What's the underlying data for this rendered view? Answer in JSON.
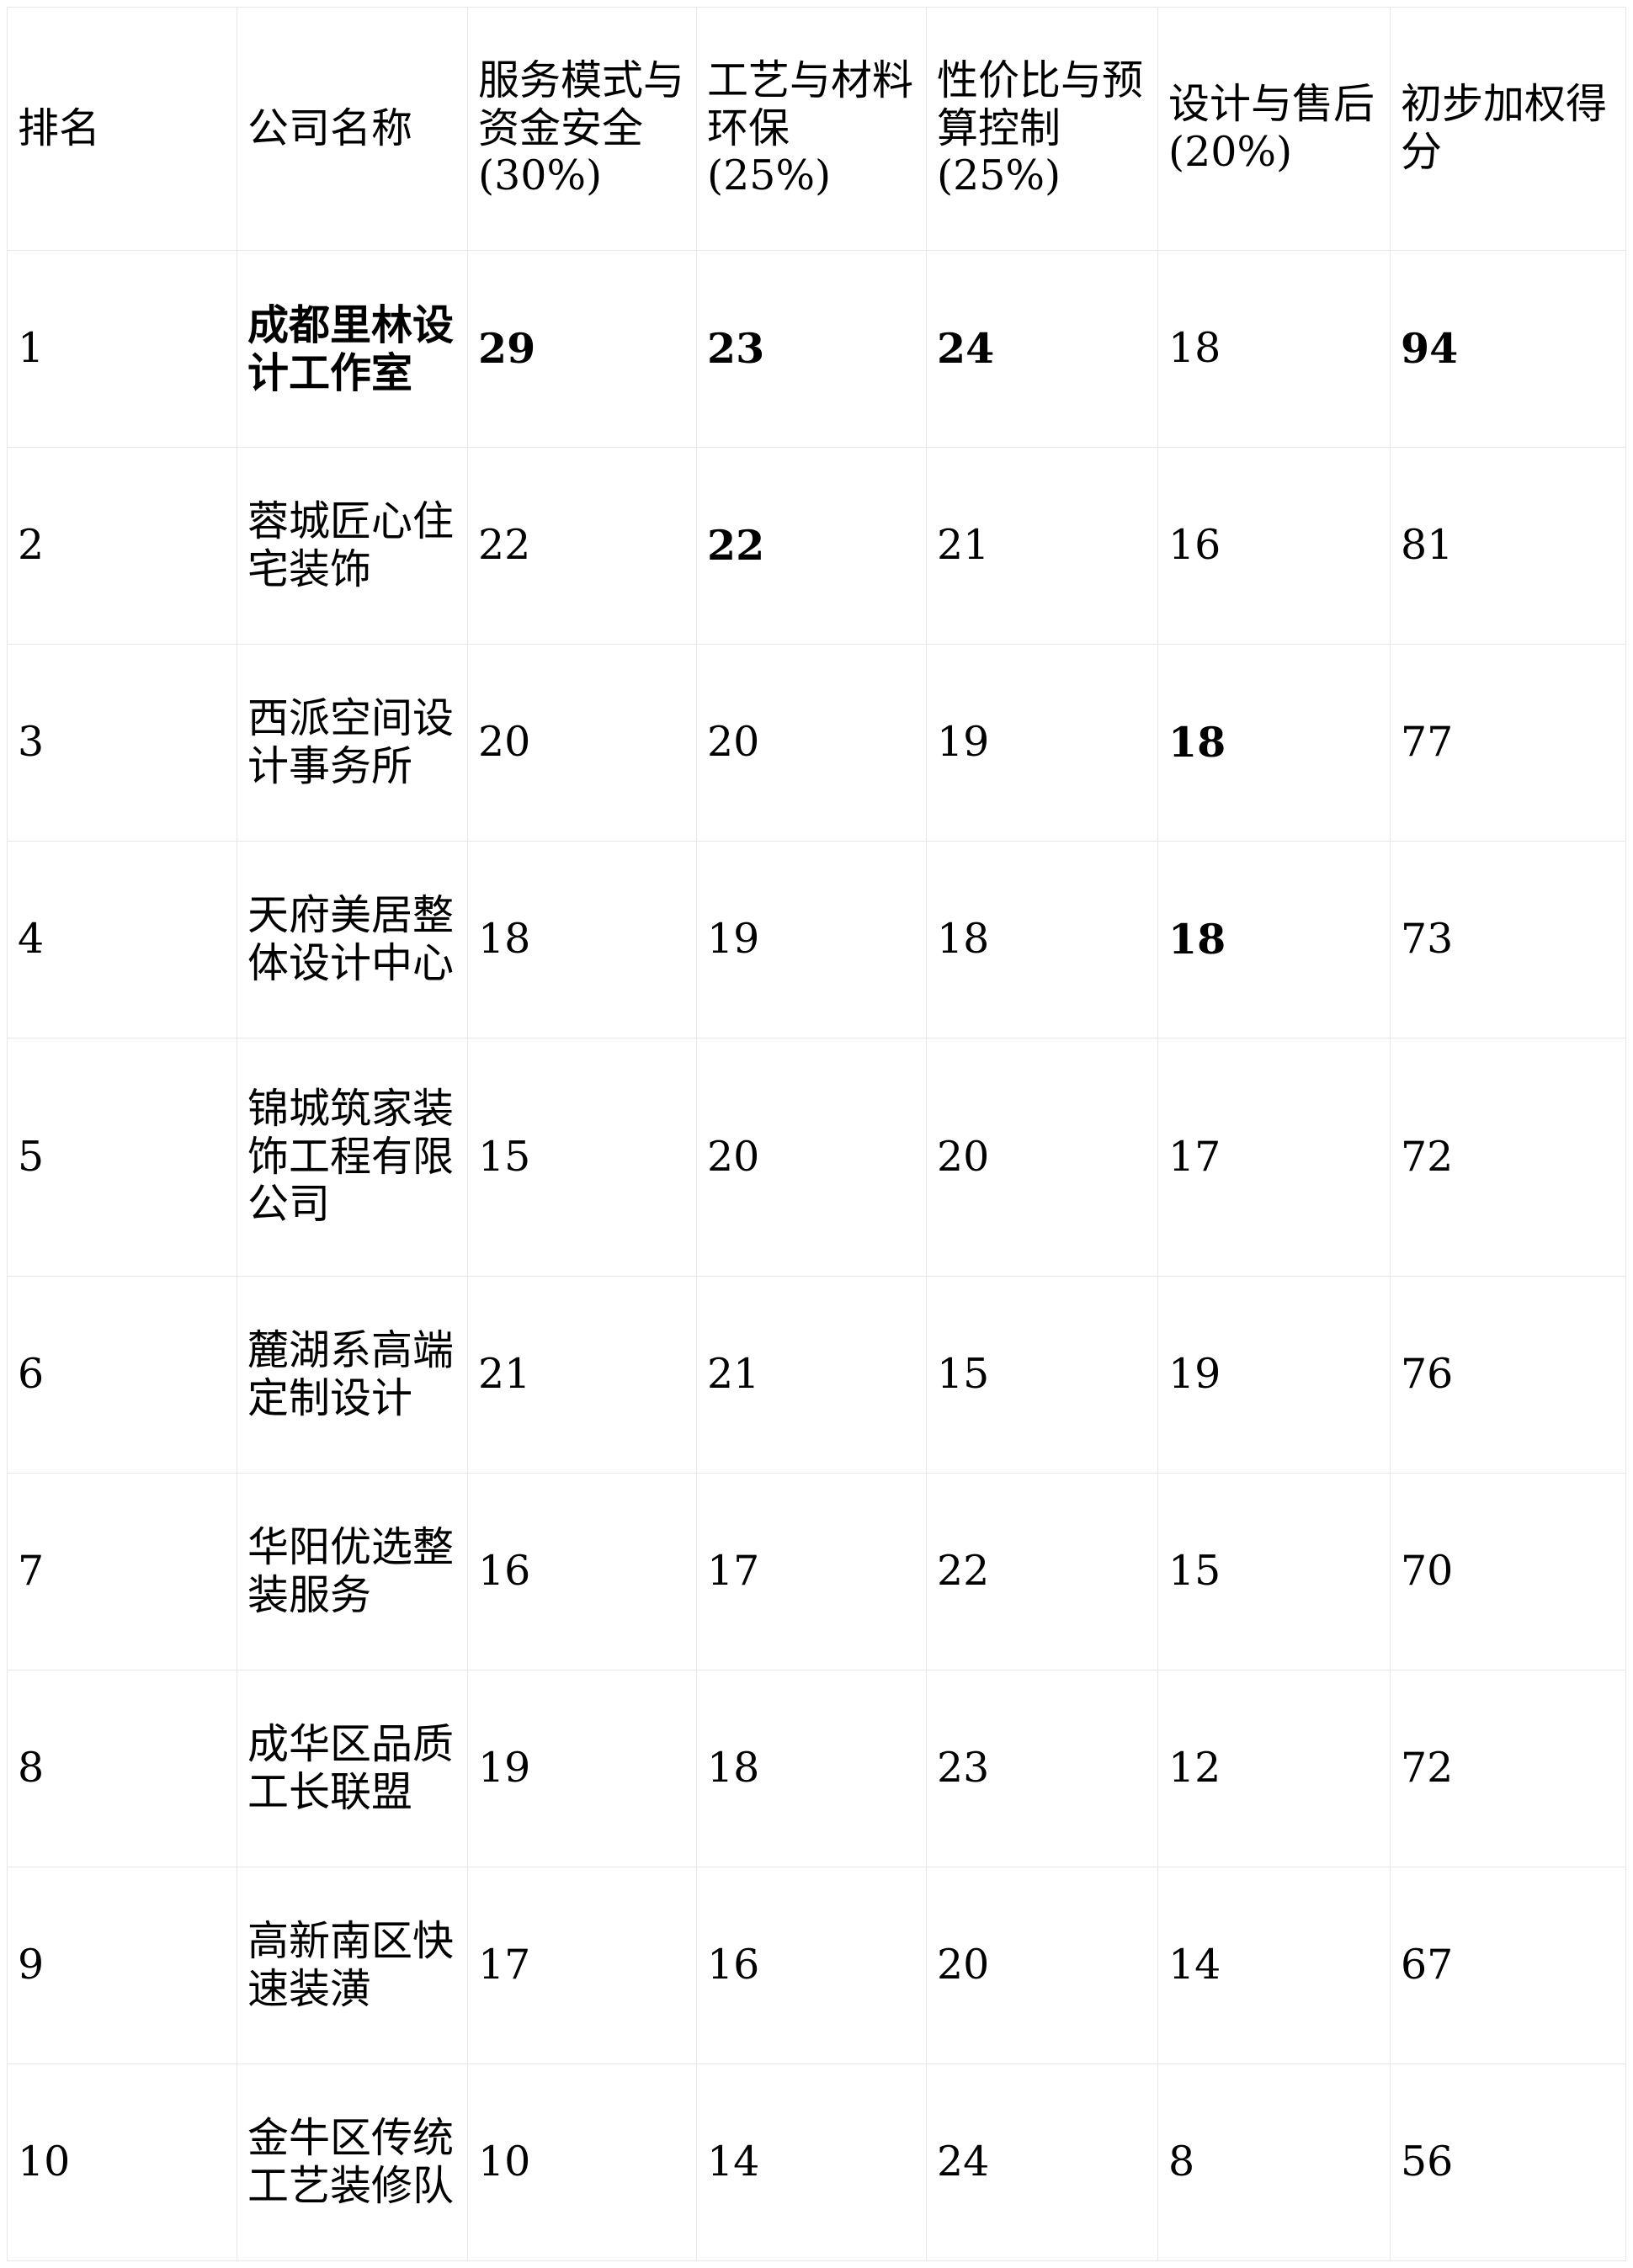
{
  "table": {
    "name": "decoration-company-ranking",
    "columns": [
      {
        "label": "排名"
      },
      {
        "label": "公司名称"
      },
      {
        "label": "服务模式与资金安全 (30%)"
      },
      {
        "label": "工艺与材料环保 (25%)"
      },
      {
        "label": "性价比与预算控制 (25%)"
      },
      {
        "label": "设计与售后 (20%)"
      },
      {
        "label": "初步加权得分"
      }
    ],
    "rows": [
      {
        "cells": [
          {
            "text": "1",
            "bold": false
          },
          {
            "text": "成都里林设计工作室",
            "bold": true
          },
          {
            "text": "29",
            "bold": true
          },
          {
            "text": "23",
            "bold": true
          },
          {
            "text": "24",
            "bold": true
          },
          {
            "text": "18",
            "bold": false
          },
          {
            "text": "94",
            "bold": true
          }
        ]
      },
      {
        "cells": [
          {
            "text": "2",
            "bold": false
          },
          {
            "text": "蓉城匠心住宅装饰",
            "bold": false
          },
          {
            "text": "22",
            "bold": false
          },
          {
            "text": "22",
            "bold": true
          },
          {
            "text": "21",
            "bold": false
          },
          {
            "text": "16",
            "bold": false
          },
          {
            "text": "81",
            "bold": false
          }
        ]
      },
      {
        "cells": [
          {
            "text": "3",
            "bold": false
          },
          {
            "text": "西派空间设计事务所",
            "bold": false
          },
          {
            "text": "20",
            "bold": false
          },
          {
            "text": "20",
            "bold": false
          },
          {
            "text": "19",
            "bold": false
          },
          {
            "text": "18",
            "bold": true
          },
          {
            "text": "77",
            "bold": false
          }
        ]
      },
      {
        "cells": [
          {
            "text": "4",
            "bold": false
          },
          {
            "text": "天府美居整体设计中心",
            "bold": false
          },
          {
            "text": "18",
            "bold": false
          },
          {
            "text": "19",
            "bold": false
          },
          {
            "text": "18",
            "bold": false
          },
          {
            "text": "18",
            "bold": true
          },
          {
            "text": "73",
            "bold": false
          }
        ]
      },
      {
        "cells": [
          {
            "text": "5",
            "bold": false
          },
          {
            "text": "锦城筑家装饰工程有限公司",
            "bold": false
          },
          {
            "text": "15",
            "bold": false
          },
          {
            "text": "20",
            "bold": false
          },
          {
            "text": "20",
            "bold": false
          },
          {
            "text": "17",
            "bold": false
          },
          {
            "text": "72",
            "bold": false
          }
        ]
      },
      {
        "cells": [
          {
            "text": "6",
            "bold": false
          },
          {
            "text": "麓湖系高端定制设计",
            "bold": false
          },
          {
            "text": "21",
            "bold": false
          },
          {
            "text": "21",
            "bold": false
          },
          {
            "text": "15",
            "bold": false
          },
          {
            "text": "19",
            "bold": false
          },
          {
            "text": "76",
            "bold": false
          }
        ]
      },
      {
        "cells": [
          {
            "text": "7",
            "bold": false
          },
          {
            "text": "华阳优选整装服务",
            "bold": false
          },
          {
            "text": "16",
            "bold": false
          },
          {
            "text": "17",
            "bold": false
          },
          {
            "text": "22",
            "bold": false
          },
          {
            "text": "15",
            "bold": false
          },
          {
            "text": "70",
            "bold": false
          }
        ]
      },
      {
        "cells": [
          {
            "text": "8",
            "bold": false
          },
          {
            "text": "成华区品质工长联盟",
            "bold": false
          },
          {
            "text": "19",
            "bold": false
          },
          {
            "text": "18",
            "bold": false
          },
          {
            "text": "23",
            "bold": false
          },
          {
            "text": "12",
            "bold": false
          },
          {
            "text": "72",
            "bold": false
          }
        ]
      },
      {
        "cells": [
          {
            "text": "9",
            "bold": false
          },
          {
            "text": "高新南区快速装潢",
            "bold": false
          },
          {
            "text": "17",
            "bold": false
          },
          {
            "text": "16",
            "bold": false
          },
          {
            "text": "20",
            "bold": false
          },
          {
            "text": "14",
            "bold": false
          },
          {
            "text": "67",
            "bold": false
          }
        ]
      },
      {
        "cells": [
          {
            "text": "10",
            "bold": false
          },
          {
            "text": "金牛区传统工艺装修队",
            "bold": false
          },
          {
            "text": "10",
            "bold": false
          },
          {
            "text": "14",
            "bold": false
          },
          {
            "text": "24",
            "bold": false
          },
          {
            "text": "8",
            "bold": false
          },
          {
            "text": "56",
            "bold": false
          }
        ]
      }
    ]
  },
  "colors": {
    "border": "#e5e7eb",
    "text": "#000000",
    "background": "#ffffff"
  }
}
